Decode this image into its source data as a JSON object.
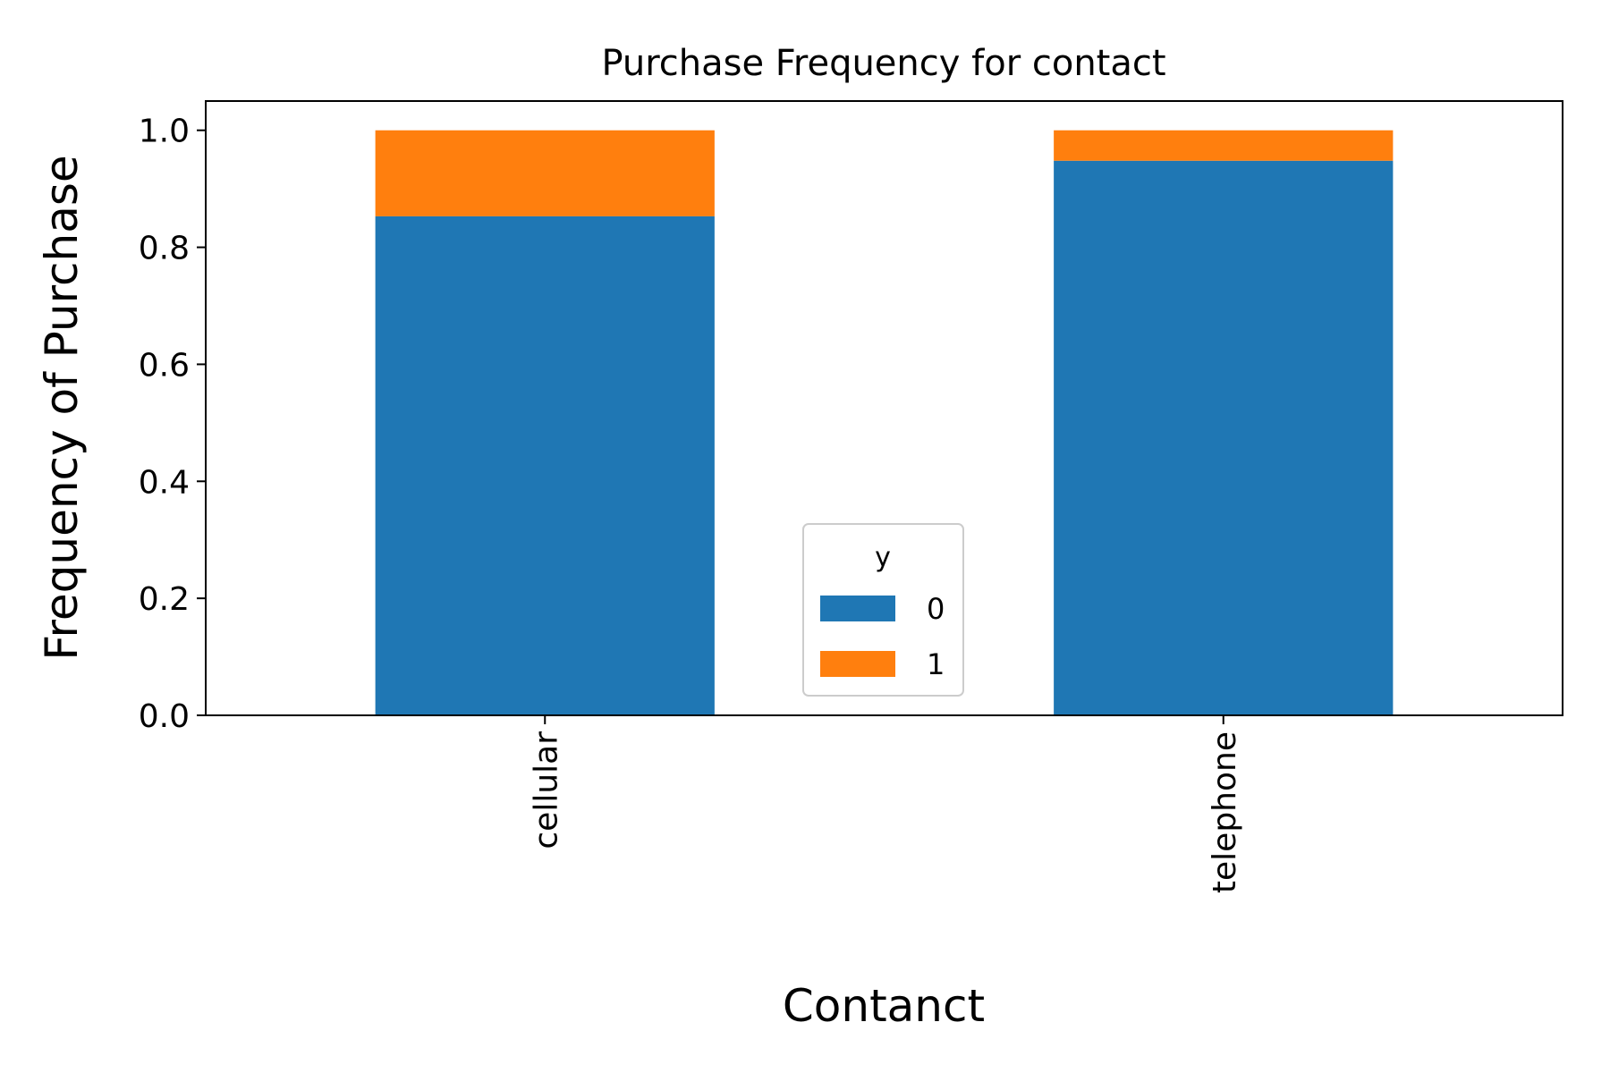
{
  "chart_data": {
    "type": "bar",
    "stacked": true,
    "title": "Purchase Frequency for contact",
    "xlabel": "Contanct",
    "ylabel": "Frequency of Purchase",
    "categories": [
      "cellular",
      "telephone"
    ],
    "series": [
      {
        "name": "0",
        "values": [
          0.853,
          0.948
        ],
        "color": "#1f77b4"
      },
      {
        "name": "1",
        "values": [
          0.147,
          0.052
        ],
        "color": "#ff7f0e"
      }
    ],
    "ylim": [
      0,
      1.05
    ],
    "yticks": [
      "0.0",
      "0.2",
      "0.4",
      "0.6",
      "0.8",
      "1.0"
    ],
    "legend": {
      "title": "y",
      "position": "bottom-center"
    },
    "grid": false
  }
}
